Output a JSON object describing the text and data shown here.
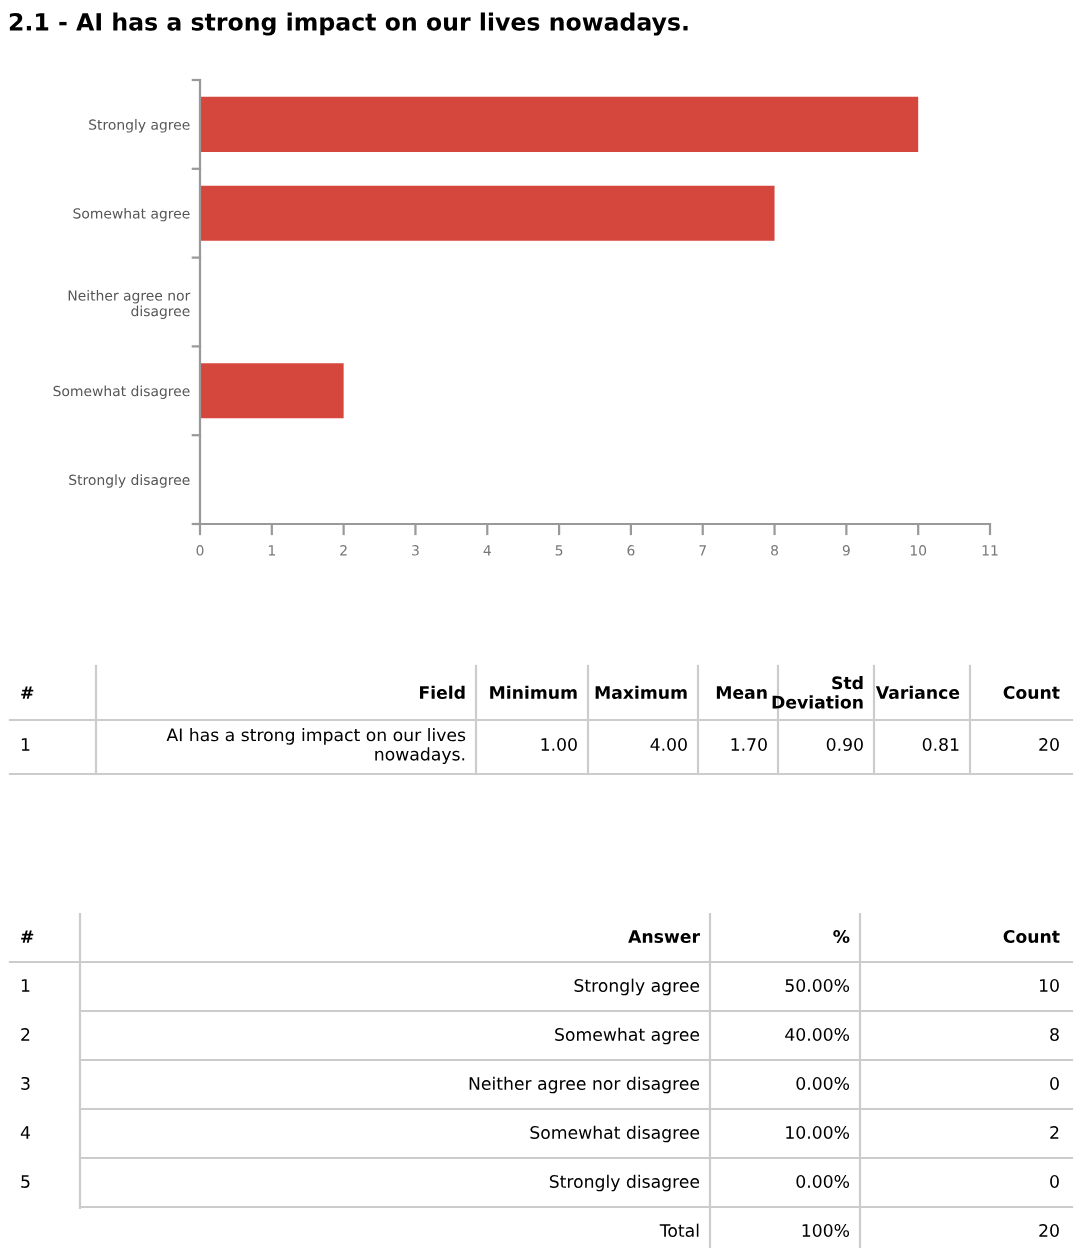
{
  "chart_data": {
    "type": "bar",
    "orientation": "horizontal",
    "title": "2.1 - AI has a strong impact on our lives nowadays.",
    "categories": [
      "Strongly agree",
      "Somewhat agree",
      "Neither agree nor\ndisagree",
      "Somewhat disagree",
      "Strongly disagree"
    ],
    "values": [
      10,
      8,
      0,
      2,
      0
    ],
    "color": "#d5463c",
    "xlim": [
      0,
      11
    ],
    "xticks": [
      0,
      1,
      2,
      3,
      4,
      5,
      6,
      7,
      8,
      9,
      10,
      11
    ],
    "grid": false,
    "annotations": [
      "#",
      "Field",
      "Minimum",
      "Maximum",
      "Mean",
      "Std\nDeviation",
      "Variance",
      "Count",
      "1",
      "AI has a strong impact on our lives\nnowadays.",
      "1.00",
      "4.00",
      "1.70",
      "0.90",
      "0.81",
      "20",
      "#",
      "Answer",
      "%",
      "Count",
      "1",
      "Strongly agree",
      "50.00%",
      "10",
      "2",
      "Somewhat agree",
      "40.00%",
      "8",
      "3",
      "Neither agree nor disagree",
      "0.00%",
      "0",
      "4",
      "Somewhat disagree",
      "10.00%",
      "2",
      "5",
      "Strongly disagree",
      "0.00%",
      "0",
      "Total",
      "100%",
      "20"
    ]
  }
}
